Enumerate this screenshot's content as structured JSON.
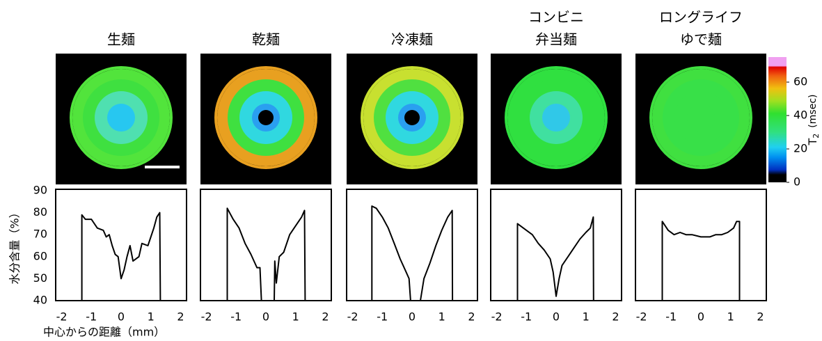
{
  "chart_data": [
    {
      "type": "line",
      "title": [
        "生麺"
      ],
      "xlim": [
        -2.2,
        2.2
      ],
      "xticks": [
        -2,
        -1,
        0,
        1,
        2
      ],
      "ylim": [
        40,
        90
      ],
      "yticks": [
        40,
        50,
        60,
        70,
        80,
        90
      ],
      "show_yticks": true,
      "y_label": "水分含量（%）",
      "x_label": "中心からの距離（mm）",
      "series": [
        {
          "color": "#000000",
          "x": [
            -1.32,
            -1.32,
            -1.2,
            -1.0,
            -0.8,
            -0.6,
            -0.5,
            -0.4,
            -0.3,
            -0.2,
            -0.1,
            0,
            0.1,
            0.2,
            0.3,
            0.4,
            0.6,
            0.7,
            0.9,
            1.1,
            1.2,
            1.3,
            1.32
          ],
          "values": [
            40,
            79,
            77,
            77,
            73,
            72,
            69,
            70,
            65,
            61,
            60,
            50,
            54,
            60,
            65,
            58,
            60,
            66,
            65,
            73,
            78,
            80,
            40
          ]
        }
      ],
      "image": {
        "rings": [
          "#27c7f0",
          "#4fe0b0",
          "#3fe040",
          "#52e43c"
        ],
        "core": false,
        "scale_bar": true
      }
    },
    {
      "type": "line",
      "title": [
        "乾麺"
      ],
      "xlim": [
        -2.2,
        2.2
      ],
      "xticks": [
        -2,
        -1,
        0,
        1,
        2
      ],
      "ylim": [
        40,
        90
      ],
      "show_yticks": false,
      "series": [
        {
          "color": "#000000",
          "x": [
            -1.3,
            -1.3,
            -1.1,
            -0.9,
            -0.7,
            -0.5,
            -0.3,
            -0.2,
            -0.15,
            null,
            0.28,
            0.3,
            0.35,
            0.45,
            0.6,
            0.8,
            1.0,
            1.2,
            1.3,
            1.32
          ],
          "values": [
            40,
            82,
            77,
            73,
            66,
            61,
            55,
            55,
            40,
            null,
            40,
            58,
            48,
            60,
            62,
            70,
            74,
            78,
            81,
            40
          ]
        }
      ],
      "image": {
        "rings": [
          "#2a9ff0",
          "#30d8e0",
          "#3fe040",
          "#e8a020"
        ],
        "core": true,
        "scale_bar": false
      }
    },
    {
      "type": "line",
      "title": [
        "冷凍麺"
      ],
      "xlim": [
        -2.2,
        2.2
      ],
      "xticks": [
        -2,
        -1,
        0,
        1,
        2
      ],
      "ylim": [
        40,
        90
      ],
      "show_yticks": false,
      "series": [
        {
          "color": "#000000",
          "x": [
            -1.35,
            -1.35,
            -1.2,
            -1.0,
            -0.8,
            -0.6,
            -0.4,
            -0.2,
            -0.1,
            -0.05,
            null,
            0.28,
            0.4,
            0.6,
            0.8,
            1.0,
            1.2,
            1.35,
            1.36
          ],
          "values": [
            40,
            83,
            82,
            78,
            73,
            66,
            59,
            53,
            50,
            40,
            null,
            40,
            50,
            57,
            65,
            72,
            78,
            81,
            40
          ]
        }
      ],
      "image": {
        "rings": [
          "#2a9ff0",
          "#30d8e0",
          "#50e040",
          "#c8e030"
        ],
        "core": true,
        "scale_bar": false
      }
    },
    {
      "type": "line",
      "title": [
        "コンビニ",
        "弁当麺"
      ],
      "xlim": [
        -2.2,
        2.2
      ],
      "xticks": [
        -2,
        -1,
        0,
        1,
        2
      ],
      "ylim": [
        40,
        90
      ],
      "show_yticks": false,
      "series": [
        {
          "color": "#000000",
          "x": [
            -1.3,
            -1.3,
            -1.2,
            -1.0,
            -0.8,
            -0.6,
            -0.4,
            -0.2,
            -0.1,
            0,
            0.1,
            0.2,
            0.4,
            0.6,
            0.8,
            1.0,
            1.15,
            1.25,
            1.26
          ],
          "values": [
            40,
            75,
            74,
            72,
            70,
            66,
            63,
            59,
            53,
            42,
            50,
            56,
            60,
            64,
            68,
            71,
            73,
            78,
            40
          ]
        }
      ],
      "image": {
        "rings": [
          "#30c8e8",
          "#40e0a0",
          "#30e040",
          "#30e040"
        ],
        "core": false,
        "scale_bar": false
      }
    },
    {
      "type": "line",
      "title": [
        "ロングライフ",
        "ゆで麺"
      ],
      "xlim": [
        -2.2,
        2.2
      ],
      "xticks": [
        -2,
        -1,
        0,
        1,
        2
      ],
      "ylim": [
        40,
        90
      ],
      "show_yticks": false,
      "series": [
        {
          "color": "#000000",
          "x": [
            -1.3,
            -1.3,
            -1.1,
            -0.9,
            -0.7,
            -0.5,
            -0.3,
            0,
            0.3,
            0.5,
            0.7,
            0.9,
            1.1,
            1.2,
            1.3,
            1.3
          ],
          "values": [
            40,
            76,
            72,
            70,
            71,
            70,
            70,
            69,
            69,
            70,
            70,
            71,
            73,
            76,
            76,
            40
          ]
        }
      ],
      "image": {
        "rings": [
          "#38e048",
          "#38e048",
          "#38e048",
          "#40e040"
        ],
        "core": false,
        "scale_bar": false
      }
    }
  ],
  "colorbar": {
    "lim": [
      0,
      75
    ],
    "ticks": [
      0,
      20,
      40,
      60
    ],
    "label": "T",
    "label_sub": "2",
    "label_unit": "(msec)"
  }
}
